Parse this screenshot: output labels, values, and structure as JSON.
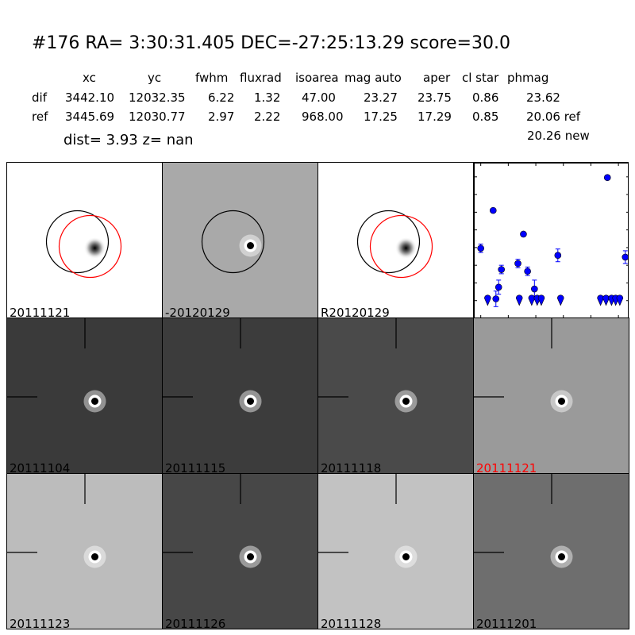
{
  "header": {
    "title": "#176   RA= 3:30:31.405 DEC=-27:25:13.29      score=30.0"
  },
  "table": {
    "columns": [
      "xc",
      "yc",
      "fwhm",
      "fluxrad",
      "isoarea",
      "mag auto",
      "aper",
      "cl star",
      "phmag"
    ],
    "rows": [
      {
        "label": "dif",
        "values": [
          "3442.10",
          "12032.35",
          "6.22",
          "1.32",
          "47.00",
          "23.27",
          "23.75",
          "0.86",
          "23.62"
        ]
      },
      {
        "label": "ref",
        "values": [
          "3445.69",
          "12030.77",
          "2.97",
          "2.22",
          "968.00",
          "17.25",
          "17.29",
          "0.85",
          "20.06 ref"
        ]
      }
    ],
    "extra": "20.26 new"
  },
  "dist_line": "dist=  3.93      z=   nan",
  "stamps_top": [
    {
      "label": "20111121",
      "bg": "#ffffff",
      "kind": "ref",
      "circles": true
    },
    {
      "label": "-20120129",
      "bg": "#a9a9a9",
      "kind": "dipole",
      "circles": true
    },
    {
      "label": "R20120129",
      "bg": "#ffffff",
      "kind": "ref",
      "circles": true
    }
  ],
  "stamps_grid": [
    {
      "label": "20111104",
      "bg": "#3a3a3a",
      "kind": "dipole",
      "red": false
    },
    {
      "label": "20111115",
      "bg": "#3c3c3c",
      "kind": "dipole",
      "red": false
    },
    {
      "label": "20111118",
      "bg": "#4a4a4a",
      "kind": "dipole",
      "red": false
    },
    {
      "label": "20111121",
      "bg": "#9a9a9a",
      "kind": "dipole",
      "red": true
    },
    {
      "label": "20111123",
      "bg": "#bcbcbc",
      "kind": "dipole",
      "red": false
    },
    {
      "label": "20111126",
      "bg": "#474747",
      "kind": "dipole",
      "red": false
    },
    {
      "label": "20111128",
      "bg": "#c2c2c2",
      "kind": "dipole",
      "red": false
    },
    {
      "label": "20111201",
      "bg": "#6e6e6e",
      "kind": "dipole",
      "red": false
    }
  ],
  "chart_data": {
    "type": "scatter",
    "title": "",
    "xlabel": "",
    "ylabel": "",
    "xlim": [
      -5,
      108
    ],
    "ylim": [
      26.0,
      21.6
    ],
    "y_inverted": true,
    "xticks": [
      0,
      20,
      40,
      60,
      80,
      100
    ],
    "yticks": [
      22.0,
      22.5,
      23.0,
      23.5,
      24.0,
      24.5,
      25.0,
      25.5,
      26.0
    ],
    "color": "#0000ff",
    "detections": [
      {
        "x": 0,
        "y": 24.02,
        "err": 0.12
      },
      {
        "x": 9,
        "y": 22.95,
        "err": 0
      },
      {
        "x": 11,
        "y": 25.45,
        "err": 0.22
      },
      {
        "x": 13,
        "y": 25.12,
        "err": 0.2
      },
      {
        "x": 15,
        "y": 24.62,
        "err": 0.12
      },
      {
        "x": 27,
        "y": 24.45,
        "err": 0.12
      },
      {
        "x": 31,
        "y": 23.62,
        "err": 0
      },
      {
        "x": 34,
        "y": 24.67,
        "err": 0.12
      },
      {
        "x": 39,
        "y": 25.17,
        "err": 0.25
      },
      {
        "x": 56,
        "y": 24.22,
        "err": 0.18
      },
      {
        "x": 92,
        "y": 22.02,
        "err": 0
      },
      {
        "x": 105,
        "y": 24.27,
        "err": 0.18
      }
    ],
    "upper_limits": [
      {
        "x": 5,
        "y": 25.5
      },
      {
        "x": 28,
        "y": 25.5
      },
      {
        "x": 37,
        "y": 25.5
      },
      {
        "x": 41,
        "y": 25.5
      },
      {
        "x": 44,
        "y": 25.5
      },
      {
        "x": 58,
        "y": 25.5
      },
      {
        "x": 87,
        "y": 25.5
      },
      {
        "x": 91,
        "y": 25.5
      },
      {
        "x": 95,
        "y": 25.5
      },
      {
        "x": 98,
        "y": 25.5
      },
      {
        "x": 101,
        "y": 25.5
      }
    ]
  }
}
